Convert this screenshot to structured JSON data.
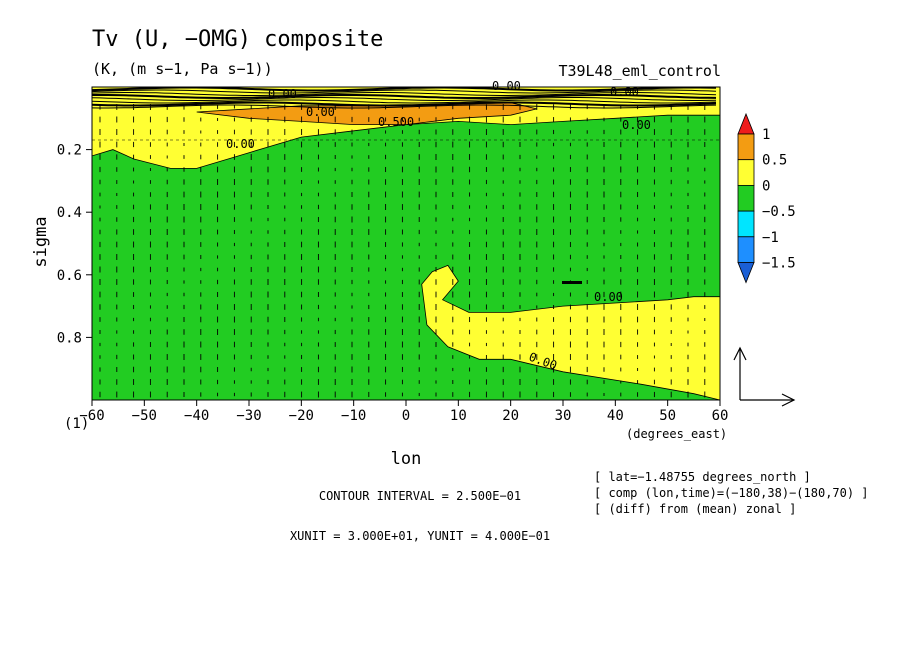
{
  "chart_data": {
    "type": "heatmap",
    "title": "Tv (U, −OMG) composite",
    "units": "(K, (m s−1, Pa s−1))",
    "run_id": "T39L48_eml_control",
    "xlabel": "lon",
    "xunits": "(degrees_east)",
    "ylabel": "sigma",
    "y_origin_label": "(1)",
    "xlim": [
      -60,
      60
    ],
    "ylim": [
      1.0,
      0.0
    ],
    "x_ticks": [
      "−60",
      "−50",
      "−40",
      "−30",
      "−20",
      "−10",
      "0",
      "10",
      "20",
      "30",
      "40",
      "50",
      "60"
    ],
    "x_tick_values": [
      -60,
      -50,
      -40,
      -30,
      -20,
      -10,
      0,
      10,
      20,
      30,
      40,
      50,
      60
    ],
    "y_ticks": [
      "0.2",
      "0.4",
      "0.6",
      "0.8"
    ],
    "y_tick_values": [
      0.2,
      0.4,
      0.6,
      0.8
    ],
    "colorbar": {
      "levels": [
        "1",
        "0.5",
        "0",
        "−0.5",
        "−1",
        "−1.5"
      ],
      "colors": [
        "#ee1c1c",
        "#f39c12",
        "#ffff33",
        "#22cc22",
        "#00e5ff",
        "#1e8fff",
        "#1a5fd6"
      ]
    },
    "contour_labels": [
      "0.00",
      "0.00",
      "0.00",
      "0.500",
      "0.00",
      "0.00",
      "0.00",
      "0.00",
      "0.00"
    ],
    "yellow_regions": [
      {
        "name": "upper-band",
        "points": [
          [
            -60,
            0.22
          ],
          [
            -56,
            0.2
          ],
          [
            -52,
            0.23
          ],
          [
            -45,
            0.26
          ],
          [
            -40,
            0.26
          ],
          [
            -30,
            0.21
          ],
          [
            -20,
            0.16
          ],
          [
            -10,
            0.14
          ],
          [
            0,
            0.12
          ],
          [
            10,
            0.11
          ],
          [
            20,
            0.12
          ],
          [
            30,
            0.11
          ],
          [
            40,
            0.1
          ],
          [
            50,
            0.09
          ],
          [
            60,
            0.09
          ],
          [
            60,
            0.0
          ],
          [
            -60,
            0.0
          ]
        ]
      },
      {
        "name": "lower-east",
        "points": [
          [
            3,
            0.63
          ],
          [
            5,
            0.59
          ],
          [
            8,
            0.57
          ],
          [
            10,
            0.62
          ],
          [
            7,
            0.68
          ],
          [
            12,
            0.72
          ],
          [
            20,
            0.72
          ],
          [
            30,
            0.7
          ],
          [
            40,
            0.69
          ],
          [
            50,
            0.68
          ],
          [
            55,
            0.67
          ],
          [
            60,
            0.67
          ],
          [
            60,
            1.0
          ],
          [
            55,
            0.98
          ],
          [
            45,
            0.95
          ],
          [
            30,
            0.91
          ],
          [
            20,
            0.87
          ],
          [
            14,
            0.87
          ],
          [
            8,
            0.83
          ],
          [
            4,
            0.76
          ]
        ]
      }
    ],
    "orange_regions": [
      {
        "name": "upper-orange",
        "points": [
          [
            -40,
            0.08
          ],
          [
            -30,
            0.1
          ],
          [
            -20,
            0.11
          ],
          [
            -10,
            0.12
          ],
          [
            0,
            0.12
          ],
          [
            10,
            0.1
          ],
          [
            20,
            0.09
          ],
          [
            25,
            0.07
          ],
          [
            20,
            0.05
          ],
          [
            0,
            0.06
          ],
          [
            -20,
            0.06
          ]
        ]
      }
    ],
    "annotations": {
      "contour_interval": "CONTOUR INTERVAL = 2.500E−01",
      "units_note": "XUNIT = 3.000E+01, YUNIT = 4.000E−01",
      "lat_info": "[ lat=−1.48755 degrees_north ]",
      "comp_info": "[ comp (lon,time)=(−180,38)−(180,70) ]",
      "diff_info": "[ (diff) from (mean) zonal ]"
    }
  }
}
